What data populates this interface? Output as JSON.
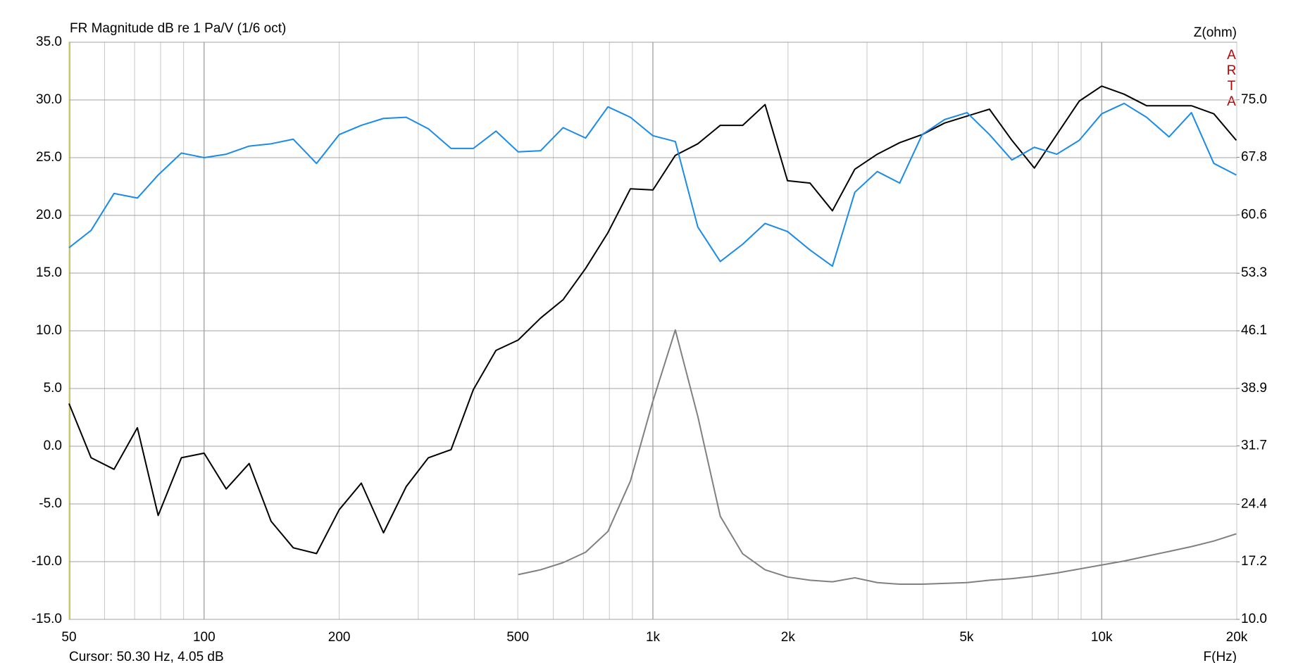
{
  "chart_data": {
    "type": "line",
    "title": "FR Magnitude dB re 1 Pa/V (1/6 oct)",
    "y2label": "Z(ohm)",
    "xlabel": "F(Hz)",
    "annotation": "ARTA",
    "cursor": "Cursor: 50.30 Hz, 4.05 dB",
    "xscale": "log",
    "grid": true,
    "x": [
      50,
      56,
      63,
      71,
      79,
      89,
      100,
      112,
      126,
      141,
      158,
      178,
      200,
      224,
      251,
      282,
      316,
      355,
      398,
      447,
      501,
      562,
      631,
      708,
      794,
      891,
      1000,
      1122,
      1259,
      1413,
      1585,
      1778,
      1995,
      2239,
      2512,
      2818,
      3162,
      3548,
      3981,
      4467,
      5012,
      5623,
      6310,
      7079,
      7943,
      8913,
      10000,
      11220,
      12590,
      14130,
      15850,
      17780,
      19950
    ],
    "xlim": [
      50,
      20000
    ],
    "xticks": [
      50,
      100,
      200,
      500,
      {
        "value": 1000,
        "label": "1k"
      },
      {
        "value": 2000,
        "label": "2k"
      },
      {
        "value": 5000,
        "label": "5k"
      },
      {
        "value": 10000,
        "label": "10k"
      },
      {
        "value": 20000,
        "label": "20k"
      }
    ],
    "xminor": [
      60,
      70,
      80,
      90,
      300,
      400,
      600,
      700,
      800,
      900,
      3000,
      4000,
      6000,
      7000,
      8000,
      9000
    ],
    "ylim": [
      -15,
      35
    ],
    "yticks": [
      {
        "value": -15,
        "label": "-15.0"
      },
      {
        "value": -10,
        "label": "-10.0"
      },
      {
        "value": -5,
        "label": "-5.0"
      },
      {
        "value": 0,
        "label": "0.0"
      },
      {
        "value": 5,
        "label": "5.0"
      },
      {
        "value": 10,
        "label": "10.0"
      },
      {
        "value": 15,
        "label": "15.0"
      },
      {
        "value": 20,
        "label": "20.0"
      },
      {
        "value": 25,
        "label": "25.0"
      },
      {
        "value": 30,
        "label": "30.0"
      },
      {
        "value": 35,
        "label": "35.0"
      }
    ],
    "y2lim": [
      10,
      82.2
    ],
    "y2ticks": [
      {
        "value": 10,
        "label": "10.0"
      },
      17.2,
      24.4,
      31.7,
      38.9,
      46.1,
      53.3,
      60.6,
      67.8,
      {
        "value": 75,
        "label": "75.0"
      }
    ],
    "series": [
      {
        "color": "#000000",
        "values": [
          3.7,
          -1.0,
          -2.0,
          1.6,
          -6.0,
          -1.0,
          -0.6,
          -3.7,
          -1.5,
          -6.5,
          -8.8,
          -9.3,
          -5.5,
          -3.2,
          -7.5,
          -3.5,
          -1.0,
          -0.3,
          4.9,
          8.3,
          9.2,
          11.1,
          12.7,
          15.4,
          18.5,
          22.3,
          22.2,
          25.2,
          26.2,
          27.8,
          27.8,
          29.6,
          23.0,
          22.8,
          20.4,
          24.0,
          25.3,
          26.3,
          27.0,
          28.0,
          28.6,
          29.2,
          26.5,
          24.1,
          27.0,
          29.9,
          31.2,
          30.5,
          29.5,
          29.5,
          29.5,
          28.8,
          26.5
        ]
      },
      {
        "color": "#1a8be8",
        "values": [
          17.2,
          18.7,
          21.9,
          21.5,
          23.5,
          25.4,
          25.0,
          25.3,
          26.0,
          26.2,
          26.6,
          24.5,
          27.0,
          27.8,
          28.4,
          28.5,
          27.5,
          25.8,
          25.8,
          27.3,
          25.5,
          25.6,
          27.6,
          26.7,
          29.4,
          28.5,
          26.9,
          26.4,
          19.0,
          16.0,
          17.5,
          19.3,
          18.6,
          17.0,
          15.6,
          22.0,
          23.8,
          22.8,
          27.0,
          28.3,
          28.9,
          27.0,
          24.8,
          25.9,
          25.3,
          26.5,
          28.8,
          29.7,
          28.5,
          26.8,
          28.9,
          24.5,
          23.5
        ]
      },
      {
        "color": "#808080",
        "axis": "y2",
        "values": [
          null,
          null,
          null,
          null,
          null,
          null,
          null,
          null,
          null,
          null,
          null,
          null,
          null,
          null,
          null,
          null,
          null,
          null,
          null,
          null,
          15.6,
          16.2,
          17.1,
          18.4,
          21.0,
          27.3,
          37.3,
          46.2,
          35.4,
          22.9,
          18.2,
          16.2,
          15.3,
          14.9,
          14.7,
          15.2,
          14.6,
          14.4,
          14.4,
          14.5,
          14.6,
          14.9,
          15.1,
          15.4,
          15.8,
          16.3,
          16.8,
          17.3,
          17.9,
          18.5,
          19.1,
          19.8,
          20.7
        ]
      }
    ]
  }
}
